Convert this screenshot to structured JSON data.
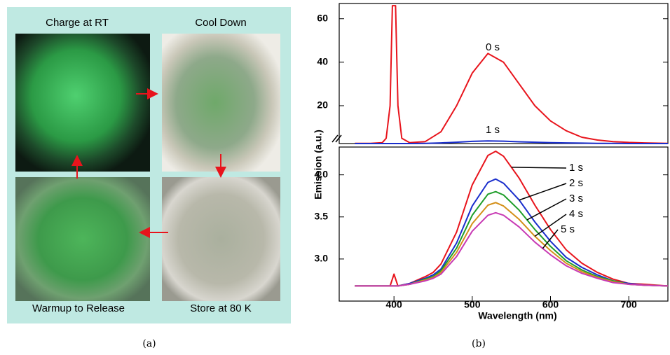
{
  "panel_a": {
    "labels": [
      "Charge at RT",
      "Cool Down",
      "Warmup to Release",
      "Store at 80 K"
    ],
    "caption": "(a)"
  },
  "caption_b": "(b)",
  "chart_data": [
    {
      "type": "line",
      "ylabel": "Emission (a.u.)",
      "x": [
        350,
        370,
        385,
        390,
        395,
        398,
        400,
        402,
        405,
        410,
        420,
        440,
        460,
        480,
        500,
        520,
        540,
        560,
        580,
        600,
        620,
        640,
        660,
        680,
        700,
        720,
        750
      ],
      "series": [
        {
          "name": "0 s",
          "color": "#e8141c",
          "values": [
            2.7,
            2.7,
            3,
            5,
            20,
            66,
            66,
            66,
            20,
            5,
            3,
            3.5,
            8,
            20,
            35,
            44,
            40,
            30,
            20,
            13,
            8.5,
            5.5,
            4.2,
            3.5,
            3.1,
            2.9,
            2.7
          ]
        },
        {
          "name": "1 s",
          "color": "#1a2ecc",
          "values": [
            2.6,
            2.6,
            2.6,
            2.6,
            2.6,
            2.6,
            2.6,
            2.6,
            2.6,
            2.6,
            2.6,
            2.7,
            2.9,
            3.2,
            3.6,
            3.8,
            3.7,
            3.4,
            3.2,
            3.0,
            2.9,
            2.8,
            2.7,
            2.7,
            2.6,
            2.6,
            2.6
          ]
        }
      ],
      "xlim": [
        330,
        750
      ],
      "ylim": [
        2.6,
        67
      ],
      "yticks": [
        20,
        40,
        60
      ]
    },
    {
      "type": "line",
      "xlabel": "Wavelength (nm)",
      "x": [
        350,
        380,
        395,
        400,
        405,
        420,
        440,
        450,
        460,
        480,
        500,
        520,
        530,
        540,
        560,
        580,
        600,
        620,
        640,
        660,
        680,
        700,
        720,
        750
      ],
      "series": [
        {
          "name": "1 s",
          "color": "#e8141c",
          "values": [
            2.68,
            2.68,
            2.68,
            2.82,
            2.68,
            2.71,
            2.79,
            2.84,
            2.94,
            3.32,
            3.88,
            4.23,
            4.28,
            4.22,
            3.96,
            3.64,
            3.35,
            3.11,
            2.95,
            2.84,
            2.76,
            2.71,
            2.7,
            2.68
          ]
        },
        {
          "name": "2 s",
          "color": "#1a2ecc",
          "values": [
            2.68,
            2.68,
            2.68,
            2.68,
            2.68,
            2.71,
            2.77,
            2.81,
            2.88,
            3.19,
            3.63,
            3.91,
            3.95,
            3.9,
            3.7,
            3.44,
            3.21,
            3.02,
            2.9,
            2.81,
            2.74,
            2.71,
            2.69,
            2.68
          ]
        },
        {
          "name": "3 s",
          "color": "#1f9e2a",
          "values": [
            2.68,
            2.68,
            2.68,
            2.68,
            2.68,
            2.7,
            2.76,
            2.79,
            2.86,
            3.13,
            3.52,
            3.77,
            3.8,
            3.76,
            3.58,
            3.35,
            3.15,
            2.98,
            2.87,
            2.79,
            2.74,
            2.7,
            2.69,
            2.68
          ]
        },
        {
          "name": "4 s",
          "color": "#d4901a",
          "values": [
            2.68,
            2.68,
            2.68,
            2.68,
            2.68,
            2.7,
            2.75,
            2.78,
            2.84,
            3.08,
            3.42,
            3.64,
            3.67,
            3.63,
            3.47,
            3.27,
            3.1,
            2.95,
            2.85,
            2.78,
            2.73,
            2.7,
            2.69,
            2.68
          ]
        },
        {
          "name": "5 s",
          "color": "#c83ab4",
          "values": [
            2.68,
            2.68,
            2.68,
            2.68,
            2.68,
            2.7,
            2.74,
            2.77,
            2.82,
            3.03,
            3.33,
            3.52,
            3.55,
            3.52,
            3.38,
            3.2,
            3.05,
            2.92,
            2.83,
            2.77,
            2.72,
            2.7,
            2.69,
            2.68
          ]
        }
      ],
      "xlim": [
        330,
        750
      ],
      "ylim": [
        2.5,
        4.33
      ],
      "xticks": [
        400,
        500,
        600,
        700
      ],
      "yticks": [
        {
          "value": 4,
          "label": "4.0"
        },
        3.5,
        {
          "value": 3,
          "label": "3.0"
        }
      ]
    }
  ]
}
